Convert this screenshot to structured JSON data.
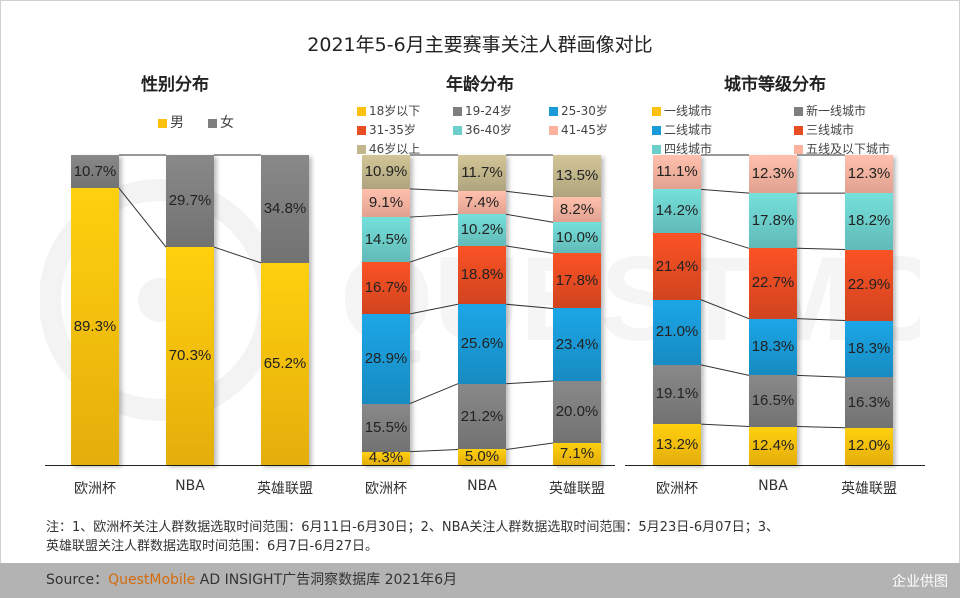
{
  "title": "2021年5-6月主要赛事关注人群画像对比",
  "note_lines": [
    "注：1、欧洲杯关注人群数据选取时间范围：6月11日-6月30日；2、NBA关注人群数据选取时间范围：5月23日-6月07日；3、",
    "英雄联盟关注人群数据选取时间范围：6月7日-6月27日。"
  ],
  "source": {
    "prefix": "Source：",
    "brand": "QuestMobile",
    "suffix": " AD INSIGHT广告洞察数据库 2021年6月"
  },
  "watermark_corner": "企业供图",
  "watermark_text": "QUESTMOBILE",
  "chart_data": [
    {
      "type": "bar",
      "stacked": true,
      "percent": true,
      "title": "性别分布",
      "categories": [
        "欧洲杯",
        "NBA",
        "英雄联盟"
      ],
      "legend_position": "top",
      "series": [
        {
          "name": "男",
          "color": "#fdc10d",
          "values": [
            89.3,
            70.3,
            65.2
          ]
        },
        {
          "name": "女",
          "color": "#7f7f7f",
          "values": [
            10.7,
            29.7,
            34.8
          ]
        }
      ],
      "ylim": [
        0,
        100
      ]
    },
    {
      "type": "bar",
      "stacked": true,
      "percent": true,
      "title": "年龄分布",
      "categories": [
        "欧洲杯",
        "NBA",
        "英雄联盟"
      ],
      "legend_position": "top",
      "series": [
        {
          "name": "18岁以下",
          "color": "#fdc10d",
          "values": [
            4.3,
            5.0,
            7.1
          ]
        },
        {
          "name": "19-24岁",
          "color": "#7f7f7f",
          "values": [
            15.5,
            21.2,
            20.0
          ]
        },
        {
          "name": "25-30岁",
          "color": "#1a9ad6",
          "values": [
            28.9,
            25.6,
            23.4
          ]
        },
        {
          "name": "31-35岁",
          "color": "#e84c22",
          "values": [
            16.7,
            18.8,
            17.8
          ]
        },
        {
          "name": "36-40岁",
          "color": "#6ccfcb",
          "values": [
            14.5,
            10.2,
            10.0
          ]
        },
        {
          "name": "41-45岁",
          "color": "#fbb3a0",
          "values": [
            9.1,
            7.4,
            8.2
          ]
        },
        {
          "name": "46岁以上",
          "color": "#c2b68c",
          "values": [
            10.9,
            11.7,
            13.5
          ]
        }
      ],
      "ylim": [
        0,
        100
      ]
    },
    {
      "type": "bar",
      "stacked": true,
      "percent": true,
      "title": "城市等级分布",
      "categories": [
        "欧洲杯",
        "NBA",
        "英雄联盟"
      ],
      "legend_position": "top",
      "series": [
        {
          "name": "一线城市",
          "color": "#fdc10d",
          "values": [
            13.2,
            12.4,
            12.0
          ]
        },
        {
          "name": "新一线城市",
          "color": "#7f7f7f",
          "values": [
            19.1,
            16.5,
            16.3
          ]
        },
        {
          "name": "二线城市",
          "color": "#1a9ad6",
          "values": [
            21.0,
            18.3,
            18.3
          ]
        },
        {
          "name": "三线城市",
          "color": "#e84c22",
          "values": [
            21.4,
            22.7,
            22.9
          ]
        },
        {
          "name": "四线城市",
          "color": "#6ccfcb",
          "values": [
            14.2,
            17.8,
            18.2
          ]
        },
        {
          "name": "五线及以下城市",
          "color": "#fbb3a0",
          "values": [
            11.1,
            12.3,
            12.3
          ]
        }
      ],
      "ylim": [
        0,
        100
      ]
    }
  ]
}
